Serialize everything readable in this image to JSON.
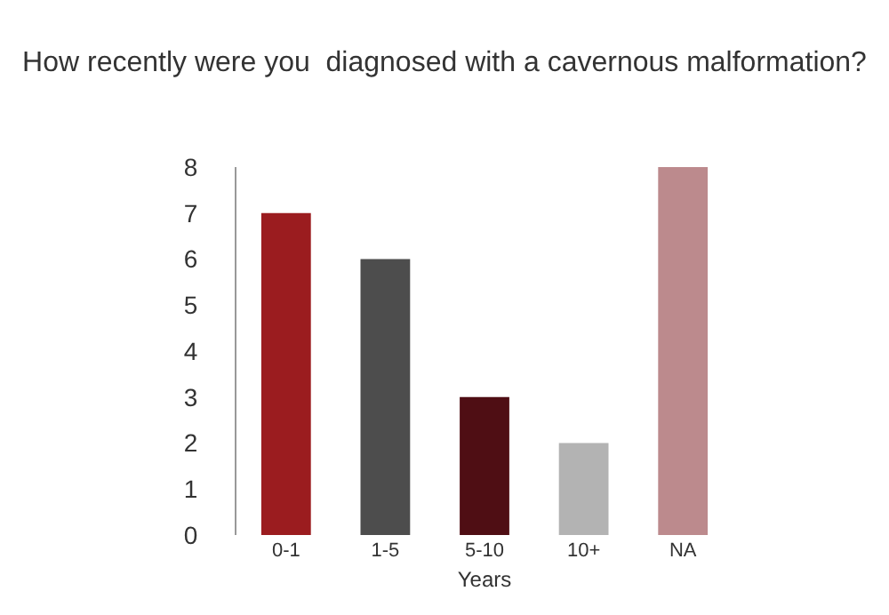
{
  "chart_data": {
    "type": "bar",
    "title": "How recently were you  diagnosed with a cavernous malformation?",
    "xlabel": "Years",
    "categories": [
      "0-1",
      "1-5",
      "5-10",
      "10+",
      "NA"
    ],
    "values": [
      7,
      6,
      3,
      2,
      8
    ],
    "colors": [
      "#9b1c1f",
      "#4d4d4d",
      "#4f0e14",
      "#b3b3b3",
      "#bc8a8d"
    ],
    "ylim": [
      0,
      8
    ],
    "yticks": [
      0,
      1,
      2,
      3,
      4,
      5,
      6,
      7,
      8
    ],
    "grid": false
  }
}
